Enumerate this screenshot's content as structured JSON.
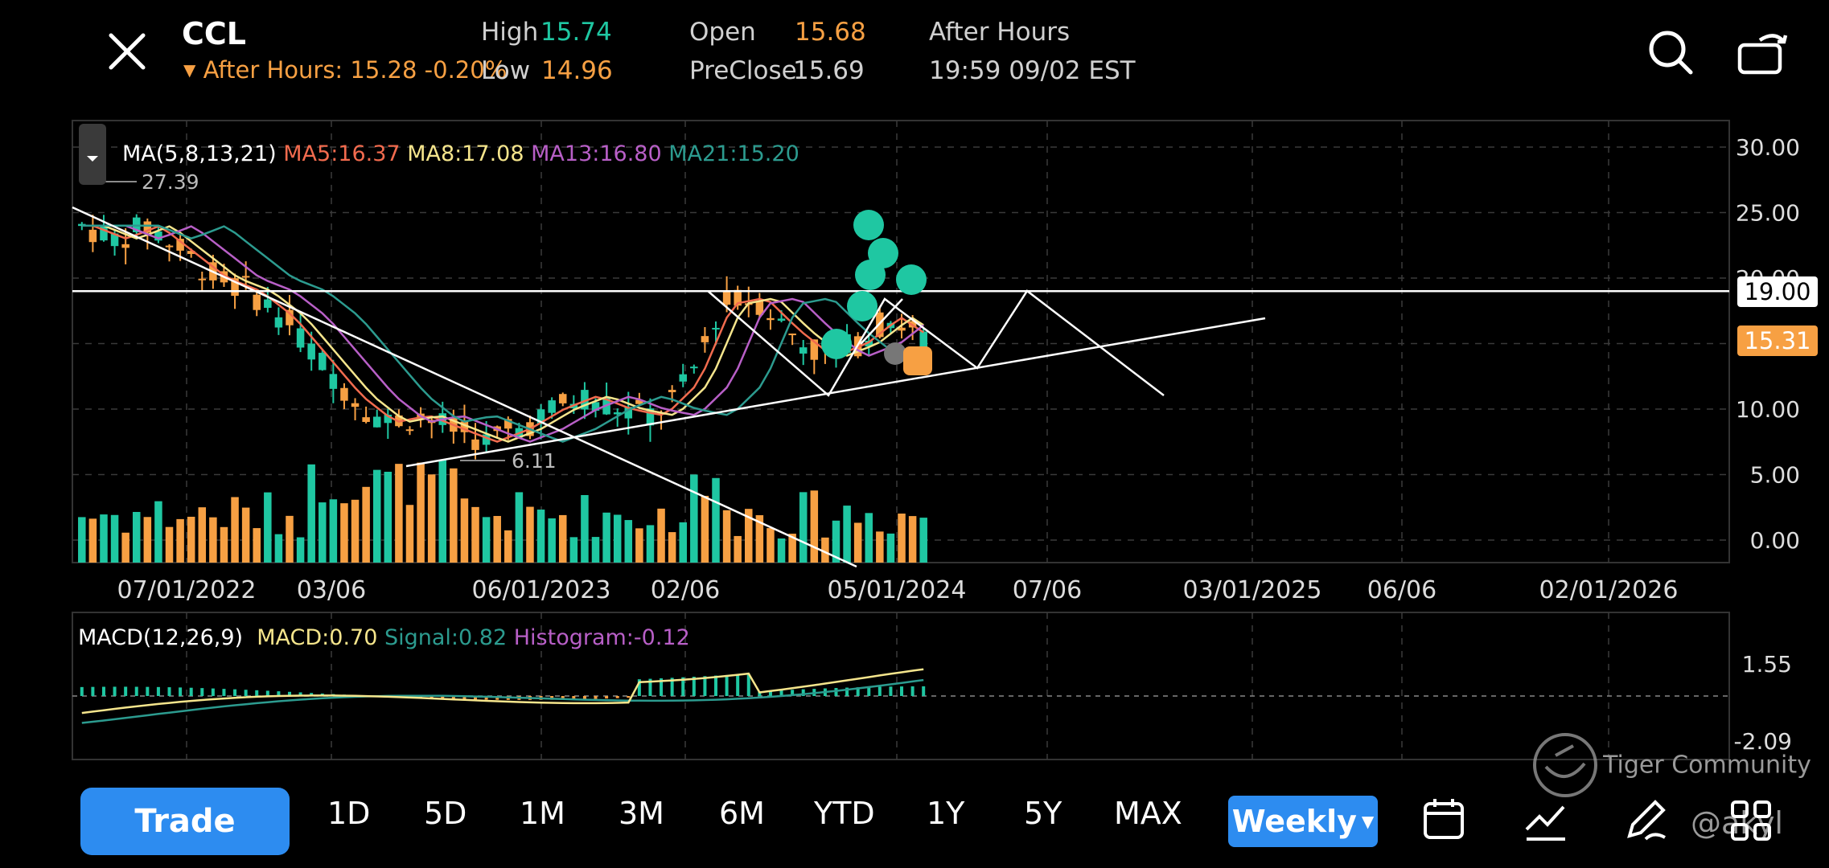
{
  "header": {
    "symbol": "CCL",
    "after_hours_line": "After Hours: 15.28 -0.20%",
    "high_label": "High",
    "high_value": "15.74",
    "low_label": "Low",
    "low_value": "14.96",
    "open_label": "Open",
    "open_value": "15.68",
    "preclose_label": "PreClose",
    "preclose_value": "15.69",
    "session_label": "After Hours",
    "session_time": "19:59 09/02 EST"
  },
  "ma_legend": {
    "title": "MA(5,8,13,21)",
    "ma5": "MA5:16.37",
    "ma8": "MA8:17.08",
    "ma13": "MA13:16.80",
    "ma21": "MA21:15.20"
  },
  "price_annotations": {
    "high_mark": "27.39",
    "low_mark": "6.11"
  },
  "price_badges": {
    "line_level": "19.00",
    "last_price": "15.31"
  },
  "macd_legend": {
    "title": "MACD(12,26,9)",
    "macd": "MACD:0.70",
    "signal": "Signal:0.82",
    "histogram": "Histogram:-0.12"
  },
  "watermark": {
    "community": "Tiger Community",
    "user": "@akyl"
  },
  "bottom_bar": {
    "trade_label": "Trade",
    "periods": [
      "1D",
      "5D",
      "1M",
      "3M",
      "6M",
      "YTD",
      "1Y",
      "5Y",
      "MAX"
    ],
    "interval_label": "Weekly"
  },
  "colors": {
    "up": "#1fc7a2",
    "down": "#f7a043",
    "ma5": "#f26b4e",
    "ma8": "#f5e58c",
    "ma13": "#b85fc7",
    "ma21": "#2c9b8f",
    "macd": "#f5e58c",
    "signal": "#2c9b8f",
    "accent": "#2d8cf0"
  },
  "chart_data": [
    {
      "type": "candlestick",
      "interval": "weekly",
      "y_ticks": [
        "30.00",
        "25.00",
        "20.00",
        "15.00",
        "10.00",
        "5.00",
        "0.00"
      ],
      "ylim": [
        0,
        30
      ],
      "x_ticks": [
        "07/01/2022",
        "03/06",
        "06/01/2023",
        "02/06",
        "05/01/2024",
        "07/06",
        "03/01/2025",
        "06/06",
        "02/01/2026"
      ],
      "close_approx": [
        24,
        23,
        24,
        22,
        20,
        19,
        17,
        14,
        11,
        9,
        9.5,
        8.5,
        7.5,
        8.5,
        10,
        11,
        10,
        9.5,
        12,
        18,
        18.5,
        16,
        14,
        15,
        17,
        15.3
      ],
      "ma": {
        "MA5": 16.37,
        "MA8": 17.08,
        "MA13": 16.8,
        "MA21": 15.2
      },
      "annotations": {
        "period_high": 27.39,
        "period_low": 6.11,
        "resistance_line": 19.0,
        "last": 15.31
      }
    },
    {
      "type": "line",
      "title": "MACD(12,26,9)",
      "series": [
        {
          "name": "MACD",
          "last": 0.7
        },
        {
          "name": "Signal",
          "last": 0.82
        },
        {
          "name": "Histogram",
          "last": -0.12
        }
      ],
      "y_ticks": [
        "1.55",
        "-2.09"
      ]
    }
  ]
}
